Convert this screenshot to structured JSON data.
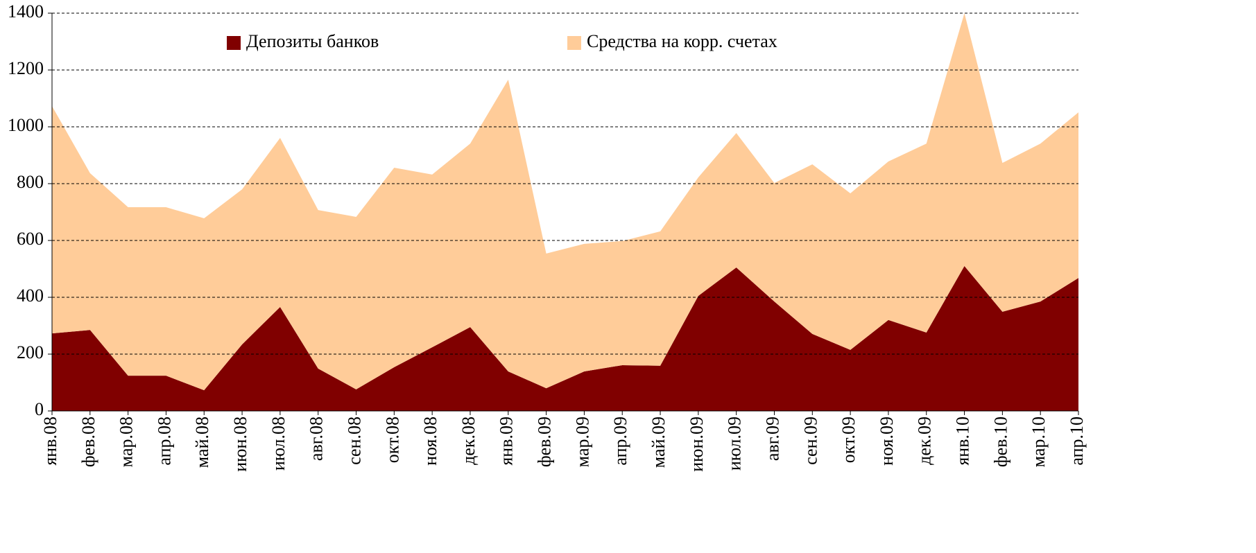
{
  "chart_data": {
    "type": "area",
    "stacked": true,
    "categories": [
      "янв.08",
      "фев.08",
      "мар.08",
      "апр.08",
      "май.08",
      "июн.08",
      "июл.08",
      "авг.08",
      "сен.08",
      "окт.08",
      "ноя.08",
      "дек.08",
      "янв.09",
      "фев.09",
      "мар.09",
      "апр.09",
      "май.09",
      "июн.09",
      "июл.09",
      "авг.09",
      "сен.09",
      "окт.09",
      "ноя.09",
      "дек.09",
      "янв.10",
      "фев.10",
      "мар.10",
      "апр.10"
    ],
    "series": [
      {
        "name": "Депозиты банков",
        "color": "#800000",
        "values": [
          273,
          285,
          124,
          124,
          73,
          234,
          366,
          149,
          76,
          154,
          224,
          295,
          139,
          80,
          139,
          161,
          159,
          405,
          505,
          385,
          271,
          215,
          320,
          276,
          510,
          349,
          385,
          468
        ]
      },
      {
        "name": "Средства на корр. счетах",
        "color": "#FFCC99",
        "values": [
          800,
          552,
          593,
          593,
          605,
          546,
          595,
          558,
          607,
          702,
          608,
          646,
          1027,
          474,
          449,
          437,
          473,
          417,
          473,
          417,
          597,
          551,
          558,
          665,
          890,
          524,
          556,
          583
        ]
      }
    ],
    "ylim": [
      0,
      1400
    ],
    "yticks": [
      0,
      200,
      400,
      600,
      800,
      1000,
      1200,
      1400
    ],
    "grid": true,
    "legend": "top"
  }
}
